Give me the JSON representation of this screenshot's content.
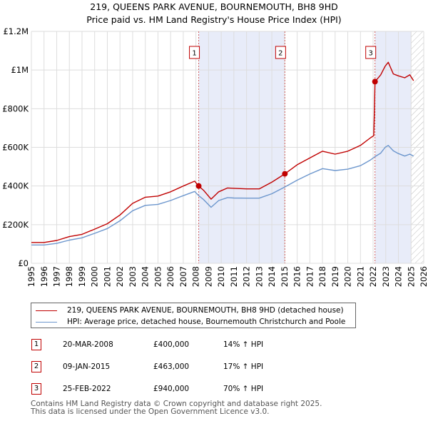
{
  "title_line1": "219, QUEENS PARK AVENUE, BOURNEMOUTH, BH8 9HD",
  "title_line2": "Price paid vs. HM Land Registry's House Price Index (HPI)",
  "colors": {
    "property": "#c00000",
    "hpi": "#6c96cd",
    "shade": "#e8ecf9",
    "grid": "#dddddd",
    "vline": "#d06060"
  },
  "legend": {
    "property_label": "219, QUEENS PARK AVENUE, BOURNEMOUTH, BH8 9HD (detached house)",
    "hpi_label": "HPI: Average price, detached house, Bournemouth Christchurch and Poole"
  },
  "transactions": [
    {
      "num": "1",
      "date": "20-MAR-2008",
      "price": "£400,000",
      "hpi": "14% ↑ HPI"
    },
    {
      "num": "2",
      "date": "09-JAN-2015",
      "price": "£463,000",
      "hpi": "17% ↑ HPI"
    },
    {
      "num": "3",
      "date": "25-FEB-2022",
      "price": "£940,000",
      "hpi": "70% ↑ HPI"
    }
  ],
  "footer": {
    "line1": "Contains HM Land Registry data © Crown copyright and database right 2025.",
    "line2": "This data is licensed under the Open Government Licence v3.0."
  },
  "chart_data": {
    "type": "line",
    "title": "219, QUEENS PARK AVENUE, BOURNEMOUTH, BH8 9HD — Price paid vs. HM Land Registry's House Price Index (HPI)",
    "xlim": [
      1995,
      2026
    ],
    "ylim": [
      0,
      1200000
    ],
    "x_ticks": [
      1995,
      1996,
      1997,
      1998,
      1999,
      2000,
      2001,
      2002,
      2003,
      2004,
      2005,
      2006,
      2007,
      2008,
      2009,
      2010,
      2011,
      2012,
      2013,
      2014,
      2015,
      2016,
      2017,
      2018,
      2019,
      2020,
      2021,
      2022,
      2023,
      2024,
      2025,
      2026
    ],
    "y_ticks": [
      {
        "value": 0,
        "label": "£0"
      },
      {
        "value": 200000,
        "label": "£200K"
      },
      {
        "value": 400000,
        "label": "£400K"
      },
      {
        "value": 600000,
        "label": "£600K"
      },
      {
        "value": 800000,
        "label": "£800K"
      },
      {
        "value": 1000000,
        "label": "£1M"
      },
      {
        "value": 1200000,
        "label": "£1.2M"
      }
    ],
    "shaded_ranges": [
      [
        2008.22,
        2015.03
      ],
      [
        2022.15,
        2025.0
      ]
    ],
    "hatched_range": [
      2025.0,
      2026
    ],
    "sales": [
      {
        "label": "1",
        "x": 2008.22,
        "y": 400000
      },
      {
        "label": "2",
        "x": 2015.03,
        "y": 463000
      },
      {
        "label": "3",
        "x": 2022.15,
        "y": 940000
      }
    ],
    "series": [
      {
        "name": "219, QUEENS PARK AVENUE, BOURNEMOUTH, BH8 9HD (detached house)",
        "color": "#c00000",
        "points": [
          [
            1995,
            108000
          ],
          [
            1996,
            108000
          ],
          [
            1997,
            118000
          ],
          [
            1998,
            138000
          ],
          [
            1999,
            150000
          ],
          [
            2000,
            177000
          ],
          [
            2001,
            205000
          ],
          [
            2002,
            250000
          ],
          [
            2003,
            310000
          ],
          [
            2004,
            342000
          ],
          [
            2005,
            348000
          ],
          [
            2006,
            370000
          ],
          [
            2007,
            400000
          ],
          [
            2007.9,
            425000
          ],
          [
            2008.22,
            400000
          ],
          [
            2008.6,
            378000
          ],
          [
            2009.2,
            332000
          ],
          [
            2009.8,
            370000
          ],
          [
            2010.5,
            390000
          ],
          [
            2011,
            388000
          ],
          [
            2012,
            385000
          ],
          [
            2013,
            385000
          ],
          [
            2014,
            420000
          ],
          [
            2015.03,
            463000
          ],
          [
            2016,
            510000
          ],
          [
            2017,
            545000
          ],
          [
            2018,
            580000
          ],
          [
            2019,
            565000
          ],
          [
            2020,
            580000
          ],
          [
            2021,
            610000
          ],
          [
            2021.8,
            650000
          ],
          [
            2022.05,
            660000
          ],
          [
            2022.1,
            780000
          ],
          [
            2022.15,
            940000
          ],
          [
            2022.6,
            975000
          ],
          [
            2022.95,
            1020000
          ],
          [
            2023.2,
            1040000
          ],
          [
            2023.6,
            980000
          ],
          [
            2024,
            970000
          ],
          [
            2024.5,
            960000
          ],
          [
            2024.9,
            975000
          ],
          [
            2025.2,
            945000
          ]
        ]
      },
      {
        "name": "HPI: Average price, detached house, Bournemouth Christchurch and Poole",
        "color": "#6c96cd",
        "points": [
          [
            1995,
            95000
          ],
          [
            1996,
            95000
          ],
          [
            1997,
            103000
          ],
          [
            1998,
            120000
          ],
          [
            1999,
            132000
          ],
          [
            2000,
            155000
          ],
          [
            2001,
            180000
          ],
          [
            2002,
            220000
          ],
          [
            2003,
            272000
          ],
          [
            2004,
            300000
          ],
          [
            2005,
            305000
          ],
          [
            2006,
            325000
          ],
          [
            2007,
            350000
          ],
          [
            2007.9,
            372000
          ],
          [
            2008.22,
            350000
          ],
          [
            2008.6,
            330000
          ],
          [
            2009.2,
            290000
          ],
          [
            2009.8,
            325000
          ],
          [
            2010.5,
            340000
          ],
          [
            2011,
            338000
          ],
          [
            2012,
            337000
          ],
          [
            2013,
            337000
          ],
          [
            2014,
            360000
          ],
          [
            2015.03,
            395000
          ],
          [
            2016,
            430000
          ],
          [
            2017,
            462000
          ],
          [
            2018,
            490000
          ],
          [
            2019,
            480000
          ],
          [
            2020,
            487000
          ],
          [
            2021,
            505000
          ],
          [
            2021.8,
            535000
          ],
          [
            2022.15,
            552000
          ],
          [
            2022.6,
            570000
          ],
          [
            2022.95,
            600000
          ],
          [
            2023.2,
            610000
          ],
          [
            2023.6,
            582000
          ],
          [
            2024,
            568000
          ],
          [
            2024.5,
            555000
          ],
          [
            2024.9,
            565000
          ],
          [
            2025.2,
            555000
          ]
        ]
      }
    ]
  }
}
